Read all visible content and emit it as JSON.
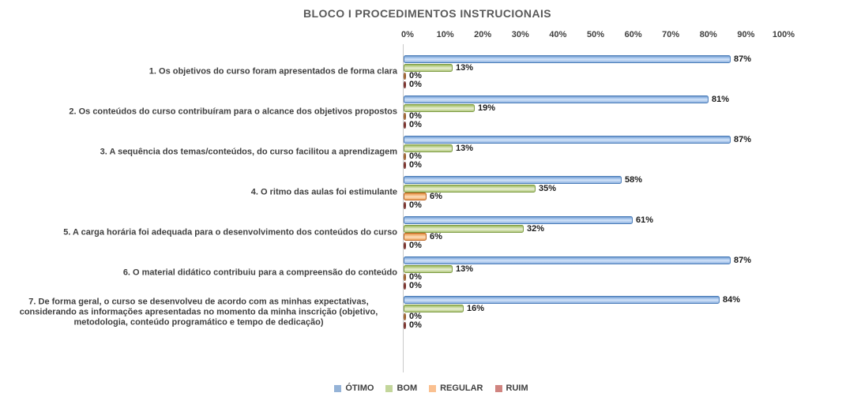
{
  "chart_data": {
    "type": "bar",
    "orientation": "horizontal",
    "title": "BLOCO I PROCEDIMENTOS INSTRUCIONAIS",
    "categories": [
      "1. Os objetivos do curso foram apresentados de forma clara",
      "2. Os conteúdos do curso contribuíram para o alcance dos objetivos propostos",
      "3. A sequência dos temas/conteúdos, do curso facilitou a aprendizagem",
      "4. O ritmo das aulas foi estimulante",
      "5. A carga horária foi adequada para o desenvolvimento dos conteúdos do curso",
      "6. O material didático contribuiu para a compreensão do conteúdo",
      "7. De forma geral, o curso se desenvolveu de acordo com as minhas expectativas, considerando as informações apresentadas no momento da minha inscrição (objetivo, metodologia, conteúdo programático e tempo de dedicação)"
    ],
    "series": [
      {
        "name": "ÓTIMO",
        "values": [
          87,
          81,
          87,
          58,
          61,
          87,
          84
        ],
        "legend_color": "#95B3D7",
        "border": "#4A7CB8",
        "gradient": [
          "#6F99CD",
          "#AAC9EE",
          "#D3E3F8",
          "#8FB4E2"
        ]
      },
      {
        "name": "BOM",
        "values": [
          13,
          19,
          13,
          35,
          32,
          13,
          16
        ],
        "legend_color": "#C3D69B",
        "border": "#7E9C45",
        "gradient": [
          "#9AB65C",
          "#C7D99D",
          "#E9EFD6",
          "#B3CA7E"
        ]
      },
      {
        "name": "REGULAR",
        "values": [
          0,
          0,
          0,
          6,
          6,
          0,
          0
        ],
        "legend_color": "#FAC090",
        "border": "#BC6420",
        "gradient": [
          "#E6964A",
          "#F6BD85",
          "#FCDEBC",
          "#F0A965"
        ],
        "zero_fill": "#B5763F",
        "zero_border": "#8F5426"
      },
      {
        "name": "RUIM",
        "values": [
          0,
          0,
          0,
          0,
          0,
          0,
          0
        ],
        "legend_color": "#D08480",
        "border": "#8C3A33",
        "gradient": [
          "#B05550",
          "#C97772",
          "#DFA09C",
          "#BC625D"
        ],
        "zero_fill": "#8C3A33",
        "zero_border": "#6F2B26"
      }
    ],
    "x_axis": {
      "min": 0,
      "max": 100,
      "ticks": [
        "0%",
        "10%",
        "20%",
        "30%",
        "40%",
        "50%",
        "60%",
        "70%",
        "80%",
        "90%",
        "100%"
      ]
    },
    "data_labels": {
      "shown": true,
      "suffix": "%"
    },
    "legend_position": "bottom"
  }
}
